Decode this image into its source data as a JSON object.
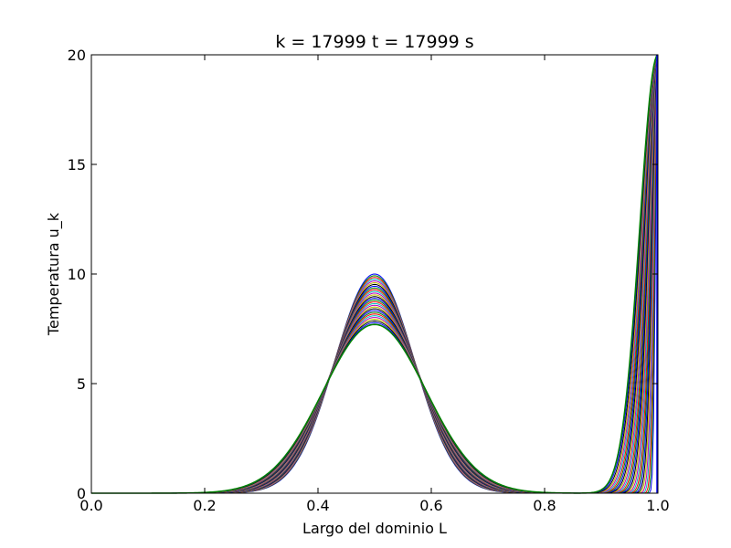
{
  "chart_data": {
    "type": "line",
    "title": "k = 17999   t = 17999 s",
    "xlabel": "Largo del dominio L",
    "ylabel": "Temperatura u_k",
    "xlim": [
      0.0,
      1.0
    ],
    "ylim": [
      0,
      20
    ],
    "xticks": [
      "0.0",
      "0.2",
      "0.4",
      "0.6",
      "0.8",
      "1.0"
    ],
    "yticks": [
      "0",
      "5",
      "10",
      "15",
      "20"
    ],
    "grid": false,
    "legend": "none",
    "n_curves": 30,
    "initial_peak": 10.0,
    "final_peak": 7.7,
    "peak_center": 0.5,
    "boundary_value_right": 20,
    "series_colors": [
      "#0000ff",
      "#008000",
      "#ff0000",
      "#00bfbf",
      "#bf00bf",
      "#bfbf00",
      "#000000"
    ]
  }
}
